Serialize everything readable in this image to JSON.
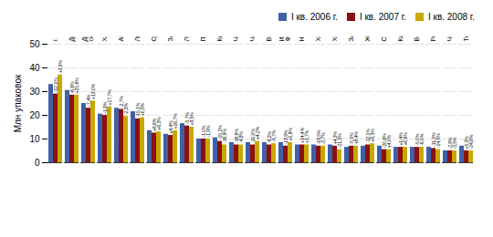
{
  "chart_data": {
    "type": "bar",
    "categories": [
      "г. Киев",
      "Донецкая обл.",
      "Днепропетров-\nская обл.",
      "Харьковская обл.",
      "АР Крым",
      "Львовская обл.",
      "Одесская обл.",
      "Запорожская обл.",
      "Луганская обл.",
      "Полтавская обл.",
      "Киевская обл.",
      "Черниговская обл.",
      "Черкасская обл.",
      "Винницкая обл.",
      "Ивано-\nФранковская обл.",
      "Николаевская обл.",
      "Херсонская обл.",
      "Хмельницкая обл.",
      "Закарпатская обл.",
      "Житомирская обл.",
      "Сумская обл.",
      "Кировоградская обл.",
      "Волынская обл.",
      "Ровенская обл.",
      "Черновицкая обл.",
      "Тернопольская обл."
    ],
    "series": [
      {
        "name": "I кв. 2006 г.",
        "color": "#4060a8",
        "values": [
          33.0,
          30.5,
          25.0,
          20.5,
          23.0,
          21.5,
          13.5,
          12.0,
          16.5,
          10.0,
          10.5,
          8.5,
          8.5,
          8.5,
          8.5,
          7.5,
          7.5,
          7.5,
          6.5,
          7.0,
          7.0,
          6.5,
          6.5,
          6.5,
          5.0,
          7.0
        ]
      },
      {
        "name": "I кв. 2007 г.",
        "color": "#8b1010",
        "values": [
          29.0,
          28.5,
          23.0,
          20.0,
          22.5,
          18.5,
          12.5,
          11.5,
          15.5,
          10.0,
          9.0,
          7.5,
          7.5,
          7.5,
          7.0,
          7.5,
          7.0,
          7.0,
          7.0,
          7.5,
          5.5,
          6.5,
          6.5,
          6.0,
          5.0,
          5.0
        ],
        "annotations": [
          "-12,0%",
          "-6,6%",
          "-7,4%",
          "-1,8%",
          "-2,7%",
          "-15,1%",
          "+6,6%",
          "+4,4%",
          "-5,7%",
          "-1,0%",
          "-15,2%",
          "-16,8%",
          "-10,0%",
          "-8,2%",
          "-18,9%",
          "+14,4%",
          "-18,5%",
          "+4,3%",
          "-5,5%",
          "-12,1%",
          "-20,6%",
          "+1,4%",
          "-5,0%",
          "-11,3%",
          "-2,8%",
          "+5,3%"
        ]
      },
      {
        "name": "I кв. 2008 г.",
        "color": "#c8a800",
        "values": [
          37.0,
          28.5,
          26.0,
          23.5,
          19.5,
          19.0,
          13.0,
          13.5,
          15.0,
          10.0,
          7.5,
          7.5,
          9.0,
          8.0,
          8.5,
          7.5,
          7.0,
          5.5,
          7.0,
          8.0,
          5.5,
          6.5,
          6.5,
          5.5,
          5.0,
          5.0
        ],
        "annotations": [
          "+3,5%",
          "+25,6%",
          "+13,0%",
          "+17,7%",
          "-2,8%",
          "+0,8%",
          "+6,3%",
          "+16,7%",
          "+9,5%",
          "-1,9%",
          "-16,9%",
          "-4,8%",
          "+4,2%",
          "-5,7%",
          "+0,8%",
          "+1,7%",
          "-3,7%",
          "-21,5%",
          "+8,4%",
          "+8,3%",
          "+4,0%",
          "+6,6%",
          "-6,0%",
          "-14,5%",
          "-3,5%",
          "-24,8%"
        ]
      }
    ],
    "ylabel": "Млн упаковок",
    "ylim": [
      0,
      50
    ],
    "yticks": [
      0,
      10,
      20,
      30,
      40,
      50
    ],
    "grid": true,
    "legend": "upper right"
  }
}
